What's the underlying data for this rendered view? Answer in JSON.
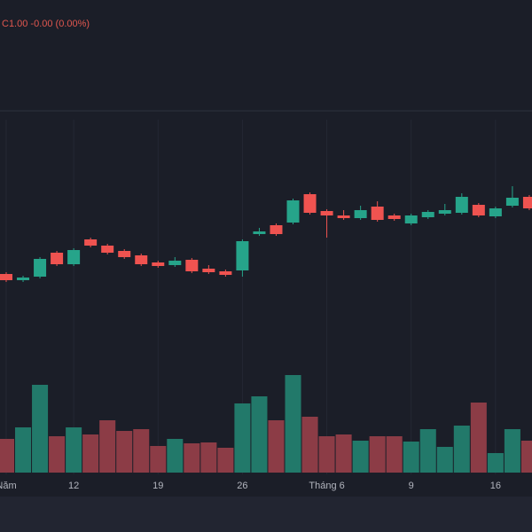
{
  "chart_data": {
    "type": "candlestick",
    "annotation": "C1.00 -0.00 (0.00%)",
    "categories": [
      "Năm",
      null,
      null,
      null,
      "12",
      null,
      null,
      null,
      null,
      "19",
      null,
      null,
      null,
      null,
      "26",
      null,
      null,
      null,
      null,
      "Tháng 6",
      null,
      null,
      null,
      null,
      "9",
      null,
      null,
      null,
      null,
      "16",
      null,
      null
    ],
    "open": [
      91,
      84,
      88,
      115,
      102,
      130,
      123,
      117,
      112,
      104,
      101,
      107,
      97,
      94,
      95,
      136,
      146,
      149,
      181,
      162,
      157,
      154,
      167,
      157,
      148,
      155,
      159,
      160,
      169,
      156,
      168,
      178
    ],
    "high": [
      93,
      89,
      110,
      117,
      120,
      132,
      125,
      119,
      114,
      106,
      110,
      109,
      101,
      96,
      130,
      143,
      148,
      176,
      183,
      164,
      163,
      168,
      173,
      159,
      159,
      163,
      170,
      182,
      171,
      167,
      190,
      180
    ],
    "low": [
      82,
      82,
      86,
      100,
      100,
      121,
      113,
      108,
      100,
      98,
      99,
      92,
      91,
      88,
      88,
      134,
      134,
      147,
      158,
      132,
      152,
      152,
      150,
      151,
      146,
      153,
      157,
      158,
      155,
      154,
      166,
      163
    ],
    "close": [
      84,
      87,
      108,
      102,
      118,
      123,
      115,
      110,
      102,
      100,
      106,
      94,
      93,
      90,
      128,
      139,
      136,
      174,
      160,
      157,
      154,
      163,
      152,
      153,
      157,
      161,
      163,
      178,
      157,
      165,
      177,
      165
    ],
    "volume": [
      38,
      51,
      99,
      41,
      51,
      43,
      59,
      47,
      49,
      30,
      38,
      33,
      34,
      28,
      78,
      86,
      59,
      110,
      63,
      41,
      43,
      36,
      41,
      41,
      35,
      49,
      29,
      53,
      79,
      22,
      49,
      36
    ],
    "ylim": [
      0,
      270
    ],
    "y2lim": [
      0,
      120
    ],
    "up_color": "#26a48a",
    "down_color": "#ef5350",
    "volume_up_color": "#22796a",
    "volume_down_color": "#8c3c46"
  }
}
